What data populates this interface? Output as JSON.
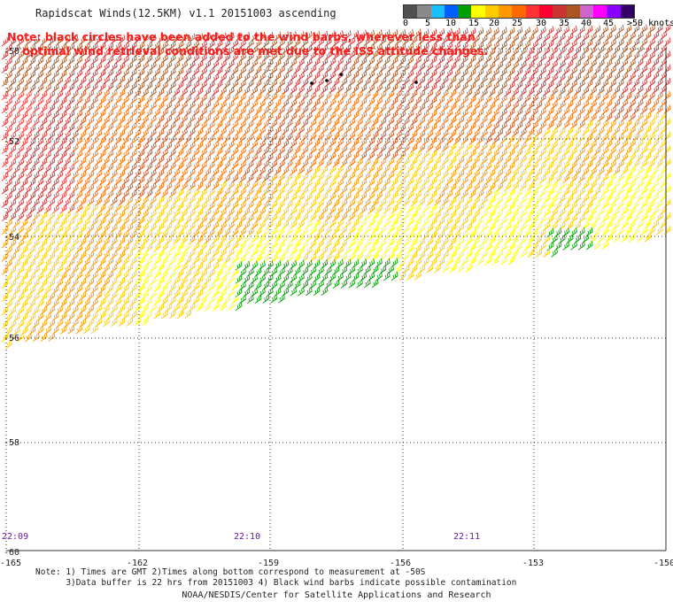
{
  "header": {
    "title": "Rapidscat Winds(12.5KM) v1.1 20151003 ascending",
    "note_line1": "Note: black circles have been added to the wind barbs, wherever less than",
    "note_line2": "    optimal wind retrieval conditions are met due to the ISS attitude changes."
  },
  "legend": {
    "colors": [
      "#505050",
      "#8a8a8a",
      "#18c0ff",
      "#0060ff",
      "#00a000",
      "#ffff00",
      "#ffcc00",
      "#ff9900",
      "#ff6a00",
      "#ff3333",
      "#ff0033",
      "#cc3333",
      "#aa5522",
      "#cc66cc",
      "#ff00ff",
      "#8800ff",
      "#330066"
    ],
    "labels": [
      "0",
      "5",
      "10",
      "15",
      "20",
      "25",
      "30",
      "35",
      "40",
      "45",
      ">50 knots"
    ]
  },
  "map": {
    "lat_labels": [
      "-50",
      "-52",
      "-54",
      "-56",
      "-58",
      "-60"
    ],
    "lon_labels": [
      "-165",
      "-162",
      "-159",
      "-156",
      "-153",
      "-150"
    ],
    "time_labels": [
      "22:09",
      "22:10",
      "22:11"
    ]
  },
  "footer": {
    "note_line1": "Note: 1) Times are GMT 2)Times along bottom correspond to measurement at -50S",
    "note_line2": "      3)Data buffer is 22 hrs from 20151003 4) Black wind barbs indicate possible contamination",
    "credit": "NOAA/NESDIS/Center for Satellite Applications and Research"
  }
}
